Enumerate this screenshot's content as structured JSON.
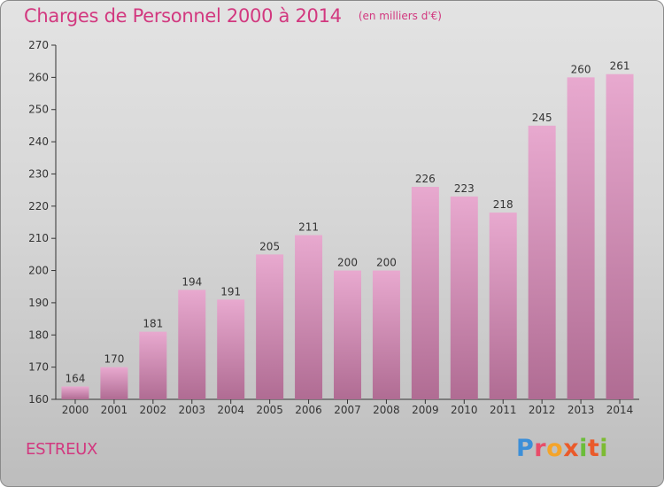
{
  "header": {
    "title": "Charges de Personnel 2000 à 2014",
    "unit_note": "(en milliers d'€)"
  },
  "footer": {
    "commune": "ESTREUX",
    "logo_text": "Proxiti"
  },
  "colors": {
    "title": "#d2387f",
    "bar_top": "#e8a9cf",
    "bar_bottom": "#b06c93",
    "axis": "#333333",
    "grid": "#bcbcbc"
  },
  "chart_data": {
    "type": "bar",
    "title": "Charges de Personnel 2000 à 2014",
    "subtitle": "(en milliers d'€)",
    "xlabel": "",
    "ylabel": "",
    "categories": [
      "2000",
      "2001",
      "2002",
      "2003",
      "2004",
      "2005",
      "2006",
      "2007",
      "2008",
      "2009",
      "2010",
      "2011",
      "2012",
      "2013",
      "2014"
    ],
    "values": [
      164,
      170,
      181,
      194,
      191,
      205,
      211,
      200,
      200,
      226,
      223,
      218,
      245,
      260,
      261
    ],
    "ylim": [
      160,
      270
    ],
    "yticks": [
      160,
      170,
      180,
      190,
      200,
      210,
      220,
      230,
      240,
      250,
      260,
      270
    ],
    "grid": false,
    "data_labels": true
  }
}
